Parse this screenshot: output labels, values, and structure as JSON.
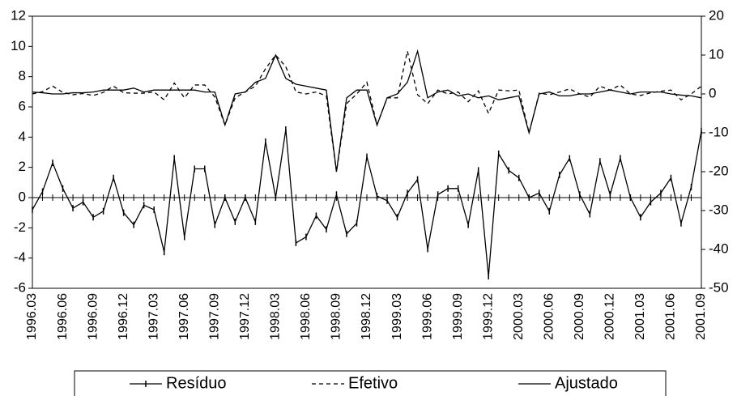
{
  "chart_data": {
    "type": "line",
    "categories": [
      "1996.03",
      null,
      null,
      "1996.06",
      null,
      null,
      "1996.09",
      null,
      null,
      "1996.12",
      null,
      null,
      "1997.03",
      null,
      null,
      "1997.06",
      null,
      null,
      "1997.09",
      null,
      null,
      "1997.12",
      null,
      null,
      "1998.03",
      null,
      null,
      "1998.06",
      null,
      null,
      "1998.09",
      null,
      null,
      "1998.12",
      null,
      null,
      "1999.03",
      null,
      null,
      "1999.06",
      null,
      null,
      "1999.09",
      null,
      null,
      "1999.12",
      null,
      null,
      "2000.03",
      null,
      null,
      "2000.06",
      null,
      null,
      "2000.09",
      null,
      null,
      "2000.12",
      null,
      null,
      "2001.03",
      null,
      null,
      "2001.06",
      null,
      null,
      "2001.09"
    ],
    "series": [
      {
        "name": "Resíduo",
        "color": "#000000",
        "line_style": "solid",
        "marker": "tick",
        "axis": "y",
        "values": [
          -0.8,
          0.4,
          2.3,
          0.6,
          -0.7,
          -0.3,
          -1.3,
          -0.9,
          1.3,
          -1.0,
          -1.8,
          -0.5,
          -0.8,
          -3.6,
          2.6,
          -2.6,
          1.9,
          1.9,
          -1.8,
          0.0,
          -1.6,
          0.0,
          -1.6,
          3.7,
          0.0,
          4.5,
          -3.0,
          -2.6,
          -1.2,
          -2.1,
          0.2,
          -2.4,
          -1.7,
          2.7,
          0.1,
          -0.2,
          -1.3,
          0.3,
          1.2,
          -3.4,
          0.2,
          0.6,
          0.6,
          -1.8,
          1.8,
          -5.2,
          2.9,
          1.8,
          1.3,
          0.0,
          0.3,
          -0.9,
          1.5,
          2.6,
          0.2,
          -1.1,
          2.4,
          0.2,
          2.6,
          0.0,
          -1.3,
          -0.3,
          0.3,
          1.3,
          -1.7,
          0.7,
          4.4
        ]
      },
      {
        "name": "Efetivo",
        "color": "#000000",
        "line_style": "dashed",
        "axis": "y2",
        "values": [
          0,
          0.6,
          2,
          0.4,
          -0.2,
          0.1,
          -0.4,
          0.4,
          2,
          0.3,
          0.2,
          0.2,
          0.5,
          -1.5,
          2.8,
          -1,
          2.3,
          2.3,
          -0.8,
          -8,
          -1,
          0.5,
          2,
          6.5,
          10,
          7,
          0.5,
          0,
          0.5,
          -0.5,
          -20,
          -2.5,
          0,
          3,
          -8,
          -1,
          -1,
          11,
          -0.2,
          -2.5,
          1,
          0,
          0.5,
          -2,
          0.8,
          -5,
          1,
          0.8,
          1,
          -10,
          0.2,
          -0.2,
          0.5,
          1.3,
          0,
          -0.8,
          2,
          1,
          2.3,
          0,
          -0.4,
          0.3,
          0.7,
          1,
          -1.5,
          0,
          2
        ]
      },
      {
        "name": "Ajustado",
        "color": "#000000",
        "line_style": "solid",
        "axis": "y2",
        "values": [
          0.5,
          0.3,
          0,
          0,
          0.3,
          0.3,
          0.5,
          1,
          1,
          1,
          1.5,
          0.5,
          1,
          1,
          1,
          1,
          1,
          0.5,
          0.5,
          -8,
          0,
          0.5,
          3,
          4,
          10,
          4,
          2.5,
          2,
          1.5,
          1,
          -20,
          -1,
          1,
          1,
          -8,
          -1,
          0,
          3,
          11,
          -1,
          0.5,
          1,
          -0.5,
          0,
          -1,
          -0.5,
          -1.5,
          -1,
          -0.5,
          -10,
          0,
          0.5,
          -0.5,
          -0.5,
          0,
          0,
          0.5,
          1,
          0.5,
          0,
          0.5,
          0.5,
          0.5,
          0,
          -0.3,
          -0.5,
          -1
        ]
      }
    ],
    "ylim": [
      -6,
      12
    ],
    "yticks": [
      -6,
      -4,
      -2,
      0,
      2,
      4,
      6,
      8,
      10,
      12
    ],
    "y2lim": [
      -50,
      20
    ],
    "y2ticks": [
      -50,
      -40,
      -30,
      -20,
      -10,
      0,
      10,
      20
    ],
    "grid": false,
    "legend": "bottom"
  }
}
